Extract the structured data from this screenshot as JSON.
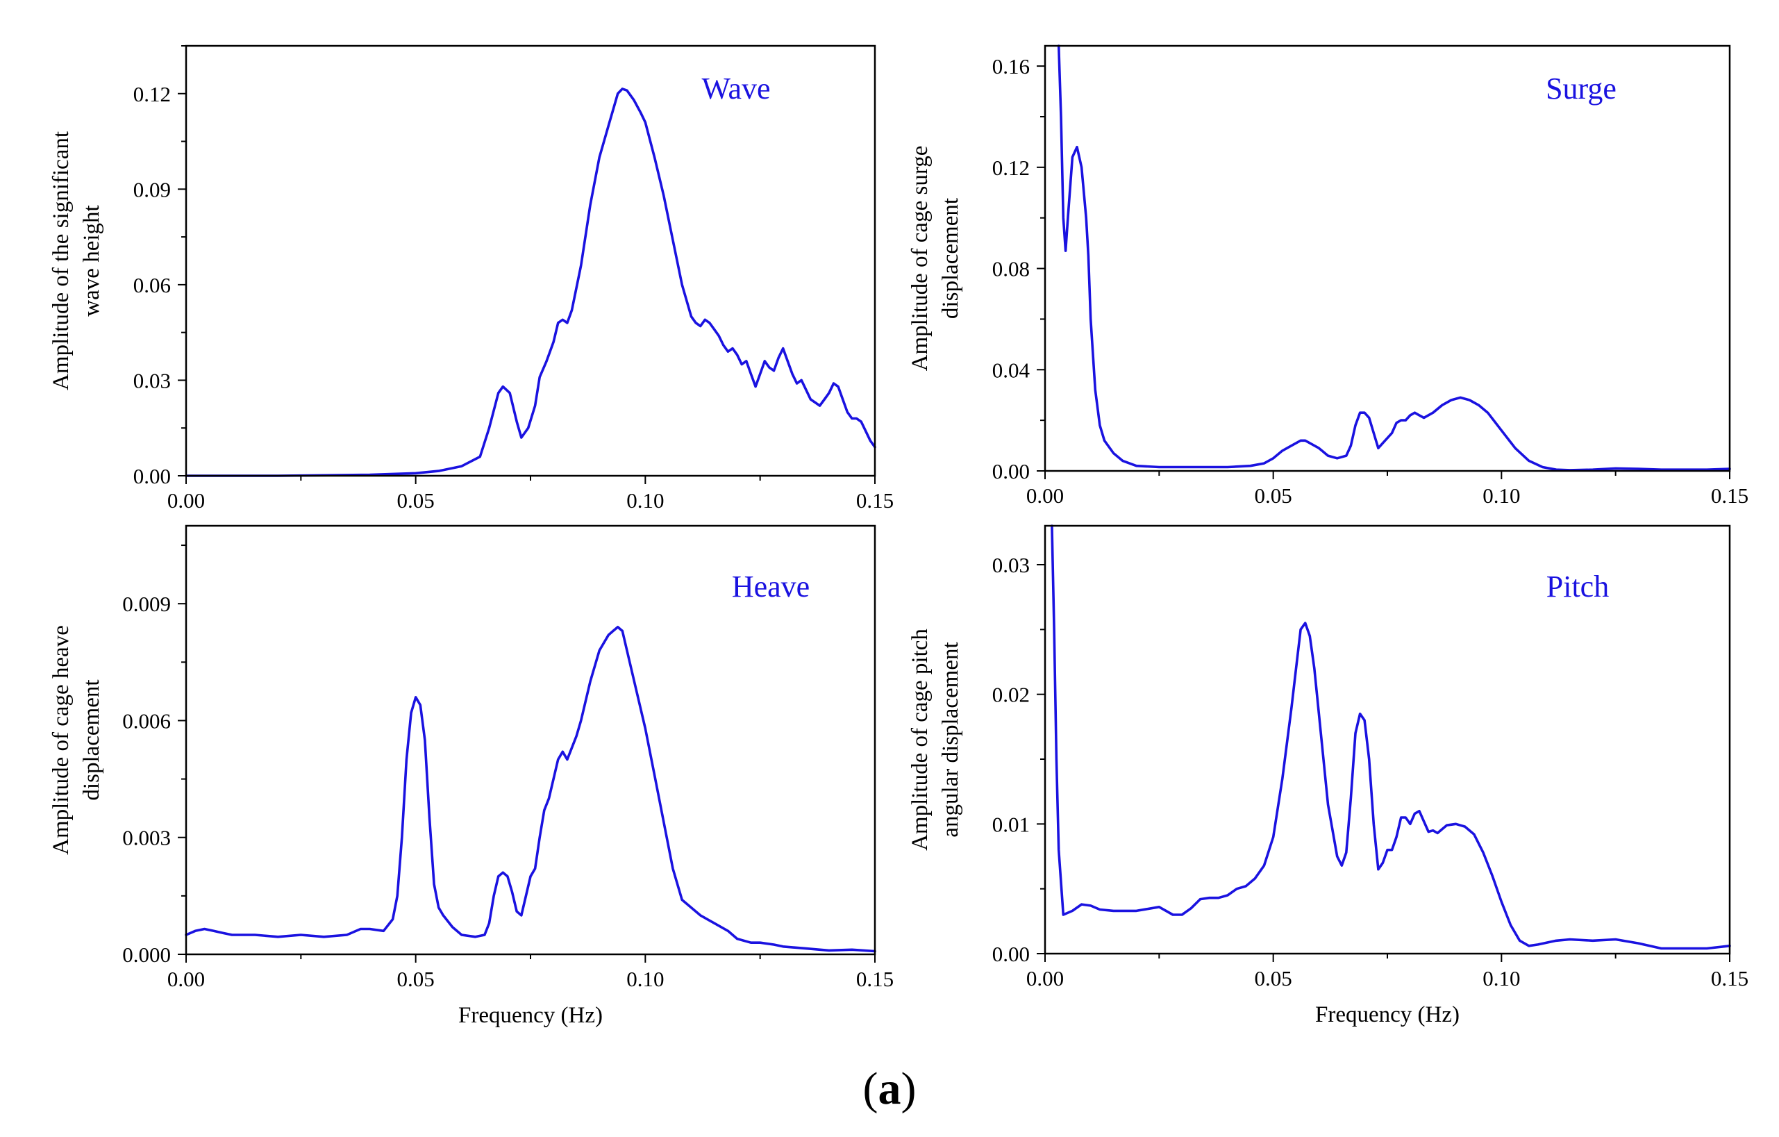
{
  "figure": {
    "caption_open": "(",
    "caption_letter": "a",
    "caption_close": ")"
  },
  "colors": {
    "series": "#1a12e0",
    "label": "#1a12e0",
    "axis": "#000000"
  },
  "chart_data": [
    {
      "type": "line",
      "title": "Wave",
      "xlabel": "",
      "ylabel": [
        "Amplitude of the significant",
        "wave height"
      ],
      "xlim": [
        0,
        0.15
      ],
      "ylim": [
        0,
        0.135
      ],
      "xticks": [
        0,
        0.05,
        0.1,
        0.15
      ],
      "xtick_labels": [
        "0.00",
        "0.05",
        "0.10",
        "0.15"
      ],
      "yticks": [
        0,
        0.03,
        0.06,
        0.09,
        0.12
      ],
      "ytick_labels": [
        "0.00",
        "0.03",
        "0.06",
        "0.09",
        "0.12"
      ],
      "series": [
        {
          "name": "Wave",
          "x": [
            0,
            0.02,
            0.04,
            0.05,
            0.055,
            0.06,
            0.064,
            0.066,
            0.068,
            0.069,
            0.0705,
            0.072,
            0.073,
            0.0745,
            0.076,
            0.077,
            0.0785,
            0.08,
            0.081,
            0.082,
            0.083,
            0.084,
            0.086,
            0.088,
            0.09,
            0.092,
            0.094,
            0.095,
            0.096,
            0.0975,
            0.099,
            0.1,
            0.102,
            0.104,
            0.106,
            0.108,
            0.11,
            0.111,
            0.112,
            0.113,
            0.114,
            0.115,
            0.116,
            0.117,
            0.118,
            0.119,
            0.12,
            0.121,
            0.122,
            0.123,
            0.124,
            0.125,
            0.126,
            0.127,
            0.128,
            0.129,
            0.13,
            0.131,
            0.132,
            0.133,
            0.134,
            0.135,
            0.136,
            0.137,
            0.138,
            0.139,
            0.14,
            0.141,
            0.142,
            0.143,
            0.144,
            0.145,
            0.146,
            0.147,
            0.148,
            0.149,
            0.15
          ],
          "y": [
            0,
            0,
            0.0003,
            0.0008,
            0.0015,
            0.003,
            0.006,
            0.015,
            0.026,
            0.028,
            0.026,
            0.017,
            0.012,
            0.015,
            0.022,
            0.031,
            0.036,
            0.042,
            0.048,
            0.049,
            0.048,
            0.052,
            0.066,
            0.085,
            0.1,
            0.11,
            0.12,
            0.1215,
            0.121,
            0.118,
            0.114,
            0.111,
            0.1,
            0.088,
            0.074,
            0.06,
            0.05,
            0.048,
            0.047,
            0.049,
            0.048,
            0.046,
            0.044,
            0.041,
            0.039,
            0.04,
            0.038,
            0.035,
            0.036,
            0.032,
            0.028,
            0.032,
            0.036,
            0.034,
            0.033,
            0.037,
            0.04,
            0.036,
            0.032,
            0.029,
            0.03,
            0.027,
            0.024,
            0.023,
            0.022,
            0.024,
            0.026,
            0.029,
            0.028,
            0.024,
            0.02,
            0.018,
            0.018,
            0.017,
            0.014,
            0.011,
            0.009
          ]
        }
      ]
    },
    {
      "type": "line",
      "title": "Surge",
      "xlabel": "",
      "ylabel": [
        "Amplitude of cage surge",
        "displacement"
      ],
      "xlim": [
        0,
        0.15
      ],
      "ylim": [
        0,
        0.168
      ],
      "xticks": [
        0,
        0.05,
        0.1,
        0.15
      ],
      "xtick_labels": [
        "0.00",
        "0.05",
        "0.10",
        "0.15"
      ],
      "yticks": [
        0,
        0.04,
        0.08,
        0.12,
        0.16
      ],
      "ytick_labels": [
        "0.00",
        "0.04",
        "0.08",
        "0.12",
        "0.16"
      ],
      "series": [
        {
          "name": "Surge",
          "x": [
            0.003,
            0.0035,
            0.004,
            0.0045,
            0.005,
            0.006,
            0.007,
            0.008,
            0.009,
            0.0095,
            0.01,
            0.011,
            0.012,
            0.013,
            0.015,
            0.017,
            0.02,
            0.025,
            0.03,
            0.035,
            0.04,
            0.045,
            0.048,
            0.05,
            0.052,
            0.054,
            0.056,
            0.057,
            0.058,
            0.06,
            0.062,
            0.064,
            0.066,
            0.067,
            0.068,
            0.069,
            0.07,
            0.071,
            0.072,
            0.073,
            0.0745,
            0.076,
            0.077,
            0.078,
            0.079,
            0.08,
            0.081,
            0.082,
            0.083,
            0.085,
            0.087,
            0.089,
            0.091,
            0.093,
            0.095,
            0.097,
            0.1,
            0.103,
            0.106,
            0.109,
            0.112,
            0.115,
            0.12,
            0.125,
            0.13,
            0.135,
            0.14,
            0.145,
            0.15
          ],
          "y": [
            0.168,
            0.14,
            0.1,
            0.087,
            0.1,
            0.124,
            0.128,
            0.12,
            0.1,
            0.085,
            0.06,
            0.032,
            0.018,
            0.012,
            0.007,
            0.004,
            0.002,
            0.0015,
            0.0015,
            0.0015,
            0.0015,
            0.002,
            0.003,
            0.005,
            0.008,
            0.01,
            0.012,
            0.012,
            0.011,
            0.009,
            0.006,
            0.005,
            0.006,
            0.01,
            0.018,
            0.023,
            0.023,
            0.021,
            0.015,
            0.009,
            0.012,
            0.015,
            0.019,
            0.02,
            0.02,
            0.022,
            0.023,
            0.022,
            0.021,
            0.023,
            0.026,
            0.028,
            0.029,
            0.028,
            0.026,
            0.023,
            0.016,
            0.009,
            0.004,
            0.0015,
            0.0005,
            0.0003,
            0.0005,
            0.001,
            0.0008,
            0.0005,
            0.0005,
            0.0005,
            0.0008
          ]
        }
      ]
    },
    {
      "type": "line",
      "title": "Heave",
      "xlabel": "Frequency (Hz)",
      "ylabel": [
        "Amplitude of cage heave",
        "displacement"
      ],
      "xlim": [
        0,
        0.15
      ],
      "ylim": [
        0,
        0.011
      ],
      "xticks": [
        0,
        0.05,
        0.1,
        0.15
      ],
      "xtick_labels": [
        "0.00",
        "0.05",
        "0.10",
        "0.15"
      ],
      "yticks": [
        0,
        0.003,
        0.006,
        0.009
      ],
      "ytick_labels": [
        "0.000",
        "0.003",
        "0.006",
        "0.009"
      ],
      "series": [
        {
          "name": "Heave",
          "x": [
            0,
            0.002,
            0.004,
            0.006,
            0.008,
            0.01,
            0.015,
            0.02,
            0.025,
            0.03,
            0.035,
            0.038,
            0.04,
            0.043,
            0.045,
            0.046,
            0.047,
            0.048,
            0.049,
            0.05,
            0.051,
            0.052,
            0.053,
            0.054,
            0.055,
            0.056,
            0.058,
            0.06,
            0.063,
            0.065,
            0.066,
            0.067,
            0.068,
            0.069,
            0.07,
            0.071,
            0.072,
            0.073,
            0.074,
            0.075,
            0.076,
            0.077,
            0.078,
            0.079,
            0.08,
            0.081,
            0.082,
            0.083,
            0.084,
            0.085,
            0.086,
            0.088,
            0.09,
            0.092,
            0.093,
            0.094,
            0.095,
            0.096,
            0.098,
            0.1,
            0.102,
            0.104,
            0.106,
            0.108,
            0.11,
            0.112,
            0.115,
            0.118,
            0.12,
            0.123,
            0.125,
            0.128,
            0.13,
            0.135,
            0.14,
            0.145,
            0.15
          ],
          "y": [
            0.0005,
            0.0006,
            0.00065,
            0.0006,
            0.00055,
            0.0005,
            0.0005,
            0.00045,
            0.0005,
            0.00045,
            0.0005,
            0.00065,
            0.00065,
            0.0006,
            0.0009,
            0.0015,
            0.003,
            0.005,
            0.0062,
            0.0066,
            0.0064,
            0.0055,
            0.0035,
            0.0018,
            0.0012,
            0.001,
            0.0007,
            0.0005,
            0.00045,
            0.0005,
            0.0008,
            0.0015,
            0.002,
            0.0021,
            0.002,
            0.0016,
            0.0011,
            0.001,
            0.0015,
            0.002,
            0.0022,
            0.003,
            0.0037,
            0.004,
            0.0045,
            0.005,
            0.0052,
            0.005,
            0.0053,
            0.0056,
            0.006,
            0.007,
            0.0078,
            0.0082,
            0.0083,
            0.0084,
            0.0083,
            0.0078,
            0.0068,
            0.0058,
            0.0046,
            0.0034,
            0.0022,
            0.0014,
            0.0012,
            0.001,
            0.0008,
            0.0006,
            0.0004,
            0.0003,
            0.0003,
            0.00025,
            0.0002,
            0.00015,
            0.0001,
            0.00012,
            8e-05
          ]
        }
      ]
    },
    {
      "type": "line",
      "title": "Pitch",
      "xlabel": "Frequency (Hz)",
      "ylabel": [
        "Amplitude of cage pitch",
        "angular displacement"
      ],
      "xlim": [
        0,
        0.15
      ],
      "ylim": [
        0,
        0.033
      ],
      "xticks": [
        0,
        0.05,
        0.1,
        0.15
      ],
      "xtick_labels": [
        "0.00",
        "0.05",
        "0.10",
        "0.15"
      ],
      "yticks": [
        0,
        0.01,
        0.02,
        0.03
      ],
      "ytick_labels": [
        "0.00",
        "0.01",
        "0.02",
        "0.03"
      ],
      "series": [
        {
          "name": "Pitch",
          "x": [
            0.0015,
            0.002,
            0.0025,
            0.003,
            0.004,
            0.006,
            0.008,
            0.01,
            0.012,
            0.015,
            0.02,
            0.025,
            0.028,
            0.03,
            0.032,
            0.034,
            0.036,
            0.038,
            0.04,
            0.042,
            0.044,
            0.046,
            0.048,
            0.05,
            0.052,
            0.054,
            0.055,
            0.056,
            0.057,
            0.058,
            0.059,
            0.06,
            0.062,
            0.064,
            0.065,
            0.066,
            0.067,
            0.068,
            0.069,
            0.07,
            0.071,
            0.072,
            0.073,
            0.074,
            0.075,
            0.076,
            0.077,
            0.078,
            0.079,
            0.08,
            0.081,
            0.082,
            0.083,
            0.084,
            0.085,
            0.086,
            0.087,
            0.088,
            0.09,
            0.092,
            0.094,
            0.096,
            0.098,
            0.1,
            0.102,
            0.104,
            0.106,
            0.108,
            0.112,
            0.115,
            0.12,
            0.125,
            0.13,
            0.135,
            0.14,
            0.145,
            0.15
          ],
          "y": [
            0.033,
            0.025,
            0.015,
            0.008,
            0.003,
            0.0033,
            0.0038,
            0.0037,
            0.0034,
            0.0033,
            0.0033,
            0.0036,
            0.003,
            0.003,
            0.0035,
            0.0042,
            0.0043,
            0.0043,
            0.0045,
            0.005,
            0.0052,
            0.0058,
            0.0068,
            0.009,
            0.0135,
            0.019,
            0.022,
            0.025,
            0.0255,
            0.0245,
            0.022,
            0.0185,
            0.0115,
            0.0075,
            0.0068,
            0.0078,
            0.012,
            0.017,
            0.0185,
            0.018,
            0.015,
            0.01,
            0.0065,
            0.007,
            0.008,
            0.008,
            0.009,
            0.0105,
            0.0105,
            0.01,
            0.0108,
            0.011,
            0.0102,
            0.0094,
            0.0095,
            0.0093,
            0.0096,
            0.0099,
            0.01,
            0.0098,
            0.0092,
            0.0078,
            0.006,
            0.004,
            0.0022,
            0.001,
            0.0006,
            0.0007,
            0.001,
            0.0011,
            0.001,
            0.0011,
            0.0008,
            0.0004,
            0.0004,
            0.0004,
            0.0006
          ]
        }
      ]
    }
  ]
}
